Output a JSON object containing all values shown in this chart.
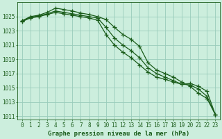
{
  "title": "Graphe pression niveau de la mer (hPa)",
  "bg_color": "#cceedd",
  "grid_color": "#99ccbb",
  "line_color": "#1a5c1a",
  "x_values": [
    0,
    1,
    2,
    3,
    4,
    5,
    6,
    7,
    8,
    9,
    10,
    11,
    12,
    13,
    14,
    15,
    16,
    17,
    18,
    19,
    20,
    21,
    22,
    23
  ],
  "series": [
    [
      1024.4,
      1025.0,
      1025.2,
      1025.6,
      1026.2,
      1026.0,
      1025.8,
      1025.5,
      1025.3,
      1025.0,
      1024.6,
      1023.5,
      1022.5,
      1021.8,
      1020.8,
      1018.5,
      1017.5,
      1017.0,
      1016.5,
      1015.8,
      1015.2,
      1014.2,
      1013.5,
      1011.2
    ],
    [
      1024.4,
      1024.9,
      1025.1,
      1025.4,
      1025.8,
      1025.6,
      1025.4,
      1025.2,
      1025.0,
      1024.8,
      1023.5,
      1022.0,
      1021.0,
      1020.2,
      1019.2,
      1017.8,
      1017.0,
      1016.5,
      1016.0,
      1015.5,
      1015.4,
      1014.8,
      1013.8,
      1011.2
    ],
    [
      1024.3,
      1024.8,
      1025.0,
      1025.3,
      1025.6,
      1025.4,
      1025.2,
      1025.0,
      1024.8,
      1024.5,
      1022.5,
      1021.0,
      1020.0,
      1019.2,
      1018.2,
      1017.2,
      1016.5,
      1016.2,
      1015.8,
      1015.5,
      1015.6,
      1015.2,
      1014.5,
      1011.2
    ]
  ],
  "ylim": [
    1010.5,
    1027.0
  ],
  "yticks": [
    1011,
    1013,
    1015,
    1017,
    1019,
    1021,
    1023,
    1025
  ],
  "marker": "+",
  "marker_size": 4,
  "line_width": 0.9,
  "title_fontsize": 6.5,
  "tick_fontsize": 5.5,
  "figsize": [
    3.2,
    2.0
  ],
  "dpi": 100
}
